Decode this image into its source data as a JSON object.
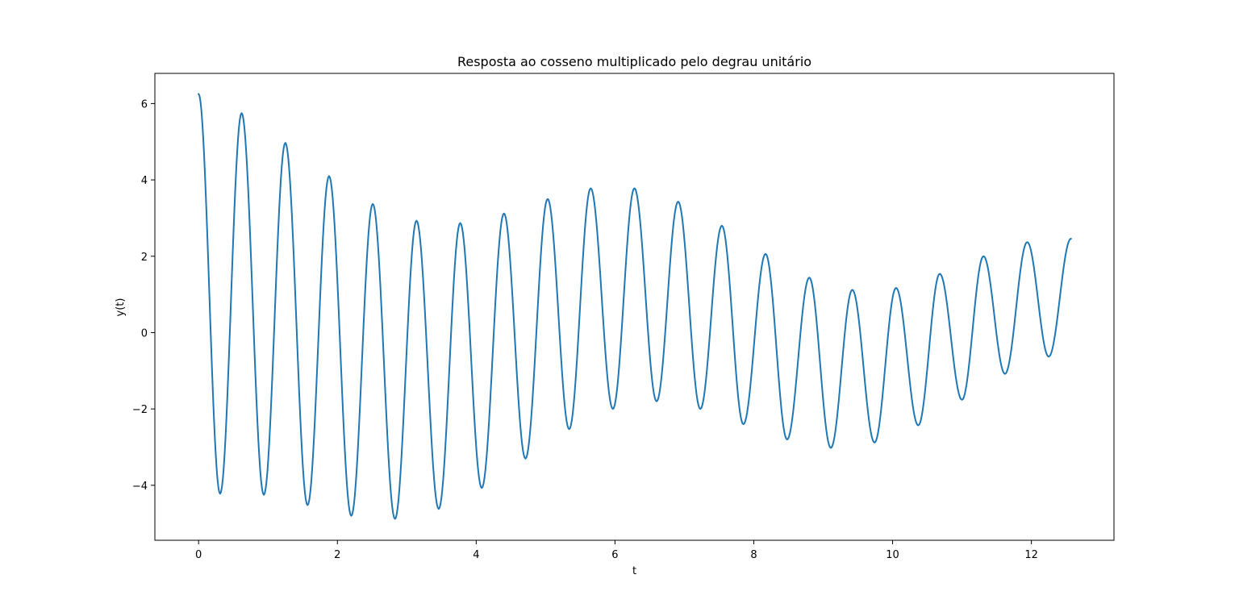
{
  "colors": {
    "line": "#1f77b4",
    "axes": "#000000",
    "background": "#ffffff"
  },
  "chart_data": {
    "type": "line",
    "title": "Resposta ao cosseno multiplicado pelo degrau unitário",
    "xlabel": "t",
    "ylabel": "y(t)",
    "xlim": [
      -0.63,
      13.19
    ],
    "ylim": [
      -5.44,
      6.79
    ],
    "xticks": [
      0,
      2,
      4,
      6,
      8,
      10,
      12
    ],
    "xtick_labels": [
      "0",
      "2",
      "4",
      "6",
      "8",
      "10",
      "12"
    ],
    "yticks": [
      -4,
      -2,
      0,
      2,
      4,
      6
    ],
    "ytick_labels": [
      "−4",
      "−2",
      "0",
      "2",
      "4",
      "6"
    ],
    "grid": false,
    "legend": "none",
    "series": [
      {
        "x": [
          0.0,
          0.31,
          0.62,
          0.94,
          1.25,
          1.57,
          1.88,
          2.2,
          2.51,
          2.83,
          3.14,
          3.46,
          3.77,
          4.08,
          4.4,
          4.71,
          5.03,
          5.34,
          5.65,
          5.97,
          6.28,
          6.6,
          6.91,
          7.23,
          7.54,
          7.85,
          8.17,
          8.48,
          8.8,
          9.11,
          9.42,
          9.74,
          10.05,
          10.37,
          10.68,
          11.0,
          11.31,
          11.62,
          11.94,
          12.25,
          12.57
        ],
        "y": [
          6.25,
          -4.22,
          5.75,
          -4.25,
          4.97,
          -4.52,
          4.1,
          -4.8,
          3.37,
          -4.88,
          2.93,
          -4.62,
          2.87,
          -4.07,
          3.12,
          -3.3,
          3.5,
          -2.53,
          3.78,
          -2.0,
          3.78,
          -1.8,
          3.43,
          -2.0,
          2.8,
          -2.4,
          2.06,
          -2.8,
          1.44,
          -3.02,
          1.12,
          -2.88,
          1.17,
          -2.43,
          1.54,
          -1.76,
          2.0,
          -1.08,
          2.37,
          -0.63,
          2.46
        ]
      }
    ]
  }
}
